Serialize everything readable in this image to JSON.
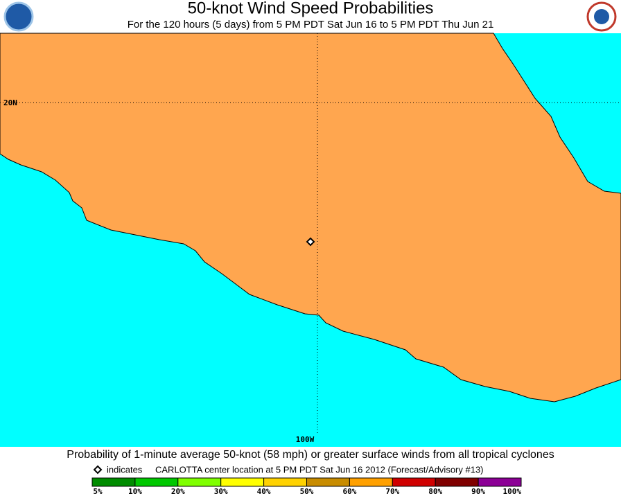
{
  "header": {
    "title": "50-knot Wind Speed Probabilities",
    "subtitle": "For the 120 hours (5 days) from 5 PM PDT Sat Jun 16 to 5 PM PDT Thu Jun 21"
  },
  "map": {
    "lat_label": "20N",
    "lon_label": "100W"
  },
  "footer": {
    "caption": "Probability of 1-minute average 50-knot (58 mph) or greater surface winds from all tropical cyclones",
    "legend_symbol_text": "indicates",
    "legend_text": "CARLOTTA center location at 5 PM PDT Sat Jun 16 2012 (Forecast/Advisory #13)",
    "scale_labels": [
      "5%",
      "10%",
      "20%",
      "30%",
      "40%",
      "50%",
      "60%",
      "70%",
      "80%",
      "90%",
      "100%"
    ],
    "scale_colors": [
      "#008c00",
      "#00c800",
      "#7fff00",
      "#ffff00",
      "#ffd200",
      "#c88c00",
      "#ffa000",
      "#d00000",
      "#800000",
      "#8c0096"
    ]
  }
}
